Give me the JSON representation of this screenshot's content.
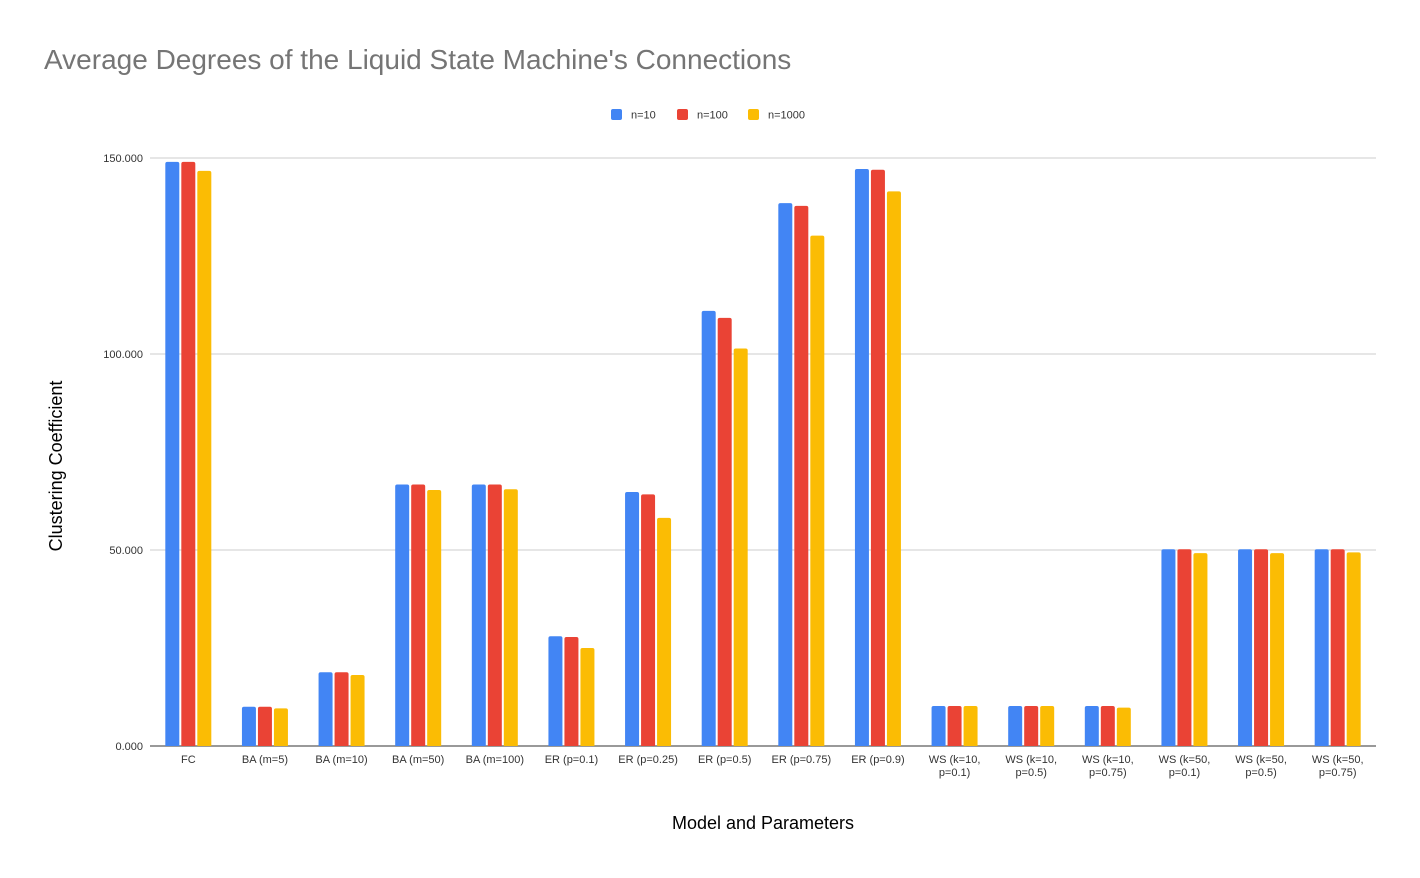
{
  "chart_data": {
    "type": "bar",
    "title": "Average Degrees of the Liquid State Machine's Connections",
    "xlabel": "Model and Parameters",
    "ylabel": "Clustering Coefficient",
    "ylim": [
      0,
      150
    ],
    "yticks": [
      {
        "value": 0,
        "label": "0.000"
      },
      {
        "value": 50,
        "label": "50.000"
      },
      {
        "value": 100,
        "label": "100.000"
      },
      {
        "value": 150,
        "label": "150.000"
      }
    ],
    "grid": true,
    "legend_position": "top-center",
    "categories": [
      [
        "FC"
      ],
      [
        "BA (m=5)"
      ],
      [
        "BA (m=10)"
      ],
      [
        "BA (m=50)"
      ],
      [
        "BA (m=100)"
      ],
      [
        "ER (p=0.1)"
      ],
      [
        "ER (p=0.25)"
      ],
      [
        "ER (p=0.5)"
      ],
      [
        "ER (p=0.75)"
      ],
      [
        "ER (p=0.9)"
      ],
      [
        "WS (k=10,",
        "p=0.1)"
      ],
      [
        "WS (k=10,",
        "p=0.5)"
      ],
      [
        "WS (k=10,",
        "p=0.75)"
      ],
      [
        "WS (k=50,",
        "p=0.1)"
      ],
      [
        "WS (k=50,",
        "p=0.5)"
      ],
      [
        "WS (k=50,",
        "p=0.75)"
      ]
    ],
    "series": [
      {
        "name": "n=10",
        "color": "#4285f4",
        "values": [
          149,
          10,
          18.8,
          66.7,
          66.7,
          28,
          64.8,
          111,
          138.5,
          147.2,
          10.2,
          10.2,
          10.2,
          50.2,
          50.2,
          50.2
        ]
      },
      {
        "name": "n=100",
        "color": "#ea4335",
        "values": [
          149,
          10,
          18.8,
          66.7,
          66.7,
          27.8,
          64.2,
          109.2,
          137.8,
          147,
          10.2,
          10.2,
          10.2,
          50.2,
          50.2,
          50.2
        ]
      },
      {
        "name": "n=1000",
        "color": "#fbbc04",
        "values": [
          146.7,
          9.6,
          18.1,
          65.3,
          65.5,
          25,
          58.2,
          101.4,
          130.2,
          141.5,
          10.2,
          10.2,
          9.8,
          49.2,
          49.2,
          49.4
        ]
      }
    ]
  }
}
